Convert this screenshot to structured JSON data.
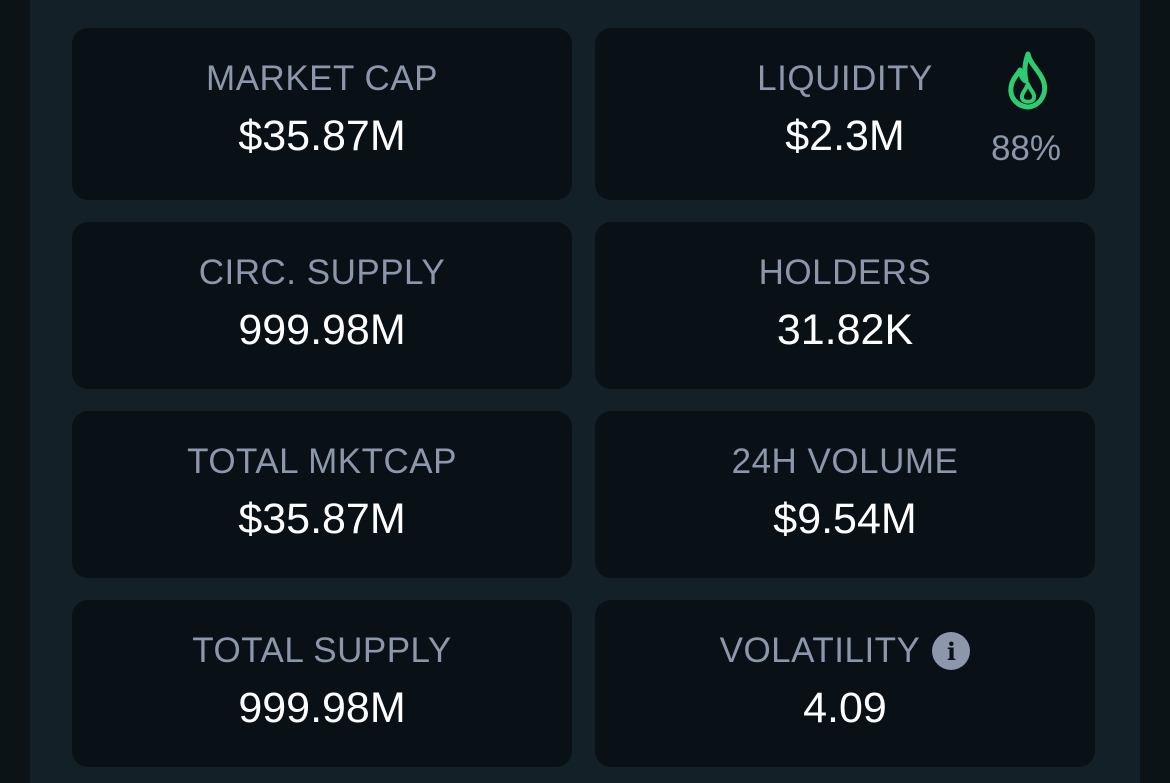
{
  "stats": {
    "market_cap": {
      "label": "MARKET CAP",
      "value": "$35.87M"
    },
    "liquidity": {
      "label": "LIQUIDITY",
      "value": "$2.3M",
      "percent": "88%"
    },
    "circ_supply": {
      "label": "CIRC. SUPPLY",
      "value": "999.98M"
    },
    "holders": {
      "label": "HOLDERS",
      "value": "31.82K"
    },
    "total_mktcap": {
      "label": "TOTAL MKTCAP",
      "value": "$35.87M"
    },
    "volume_24h": {
      "label": "24H VOLUME",
      "value": "$9.54M"
    },
    "total_supply": {
      "label": "TOTAL SUPPLY",
      "value": "999.98M"
    },
    "volatility": {
      "label": "VOLATILITY",
      "value": "4.09"
    }
  },
  "icons": {
    "liquidity_icon": "flame-icon",
    "volatility_icon": "info-icon"
  },
  "colors": {
    "flame": "#2ecc71",
    "label": "#8c97ac",
    "value": "#ffffff",
    "card": "#0a1116",
    "panel": "#132027"
  }
}
